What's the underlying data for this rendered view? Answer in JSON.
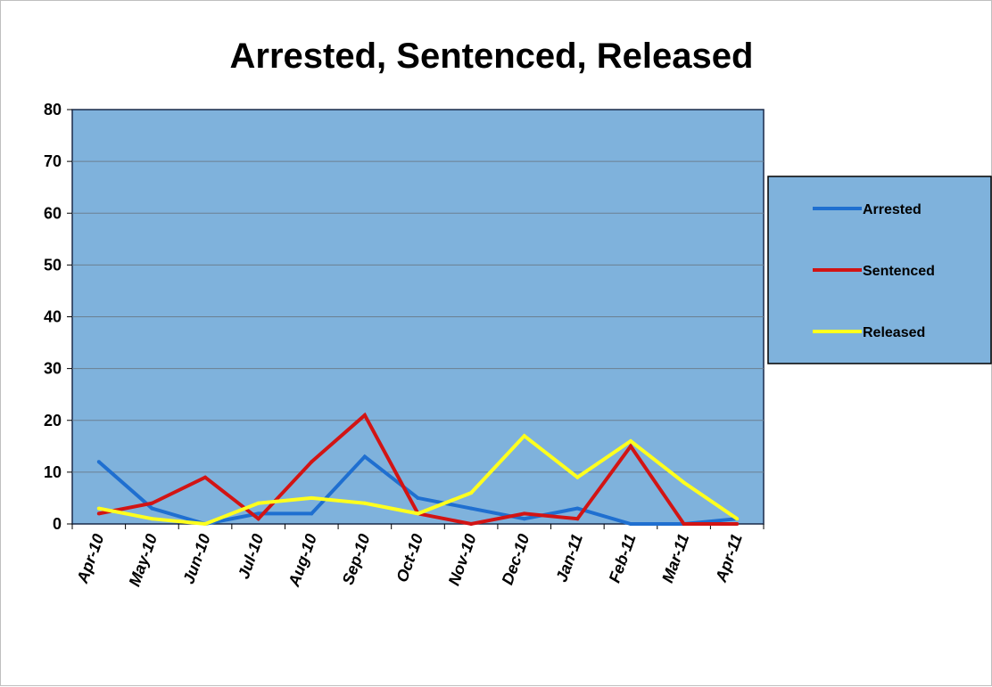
{
  "chart_data": {
    "type": "line",
    "title": "Arrested, Sentenced, Released",
    "categories": [
      "Apr-10",
      "May-10",
      "Jun-10",
      "Jul-10",
      "Aug-10",
      "Sep-10",
      "Oct-10",
      "Nov-10",
      "Dec-10",
      "Jan-11",
      "Feb-11",
      "Mar-11",
      "Apr-11"
    ],
    "series": [
      {
        "name": "Arrested",
        "color": "#1f6fd0",
        "values": [
          12,
          3,
          0,
          2,
          2,
          13,
          5,
          3,
          1,
          3,
          0,
          0,
          1
        ]
      },
      {
        "name": "Sentenced",
        "color": "#d21414",
        "values": [
          2,
          4,
          9,
          1,
          12,
          21,
          2,
          0,
          2,
          1,
          15,
          0,
          0
        ]
      },
      {
        "name": "Released",
        "color": "#ffff1e",
        "values": [
          3,
          1,
          0,
          4,
          5,
          4,
          2,
          6,
          17,
          9,
          16,
          8,
          1
        ]
      }
    ],
    "ylim": [
      0,
      80
    ],
    "yticks": [
      0,
      10,
      20,
      30,
      40,
      50,
      60,
      70,
      80
    ],
    "grid": true,
    "plot_background": "#7fb2dc",
    "legend_background": "#7fb2dc",
    "legend_position": "right"
  }
}
